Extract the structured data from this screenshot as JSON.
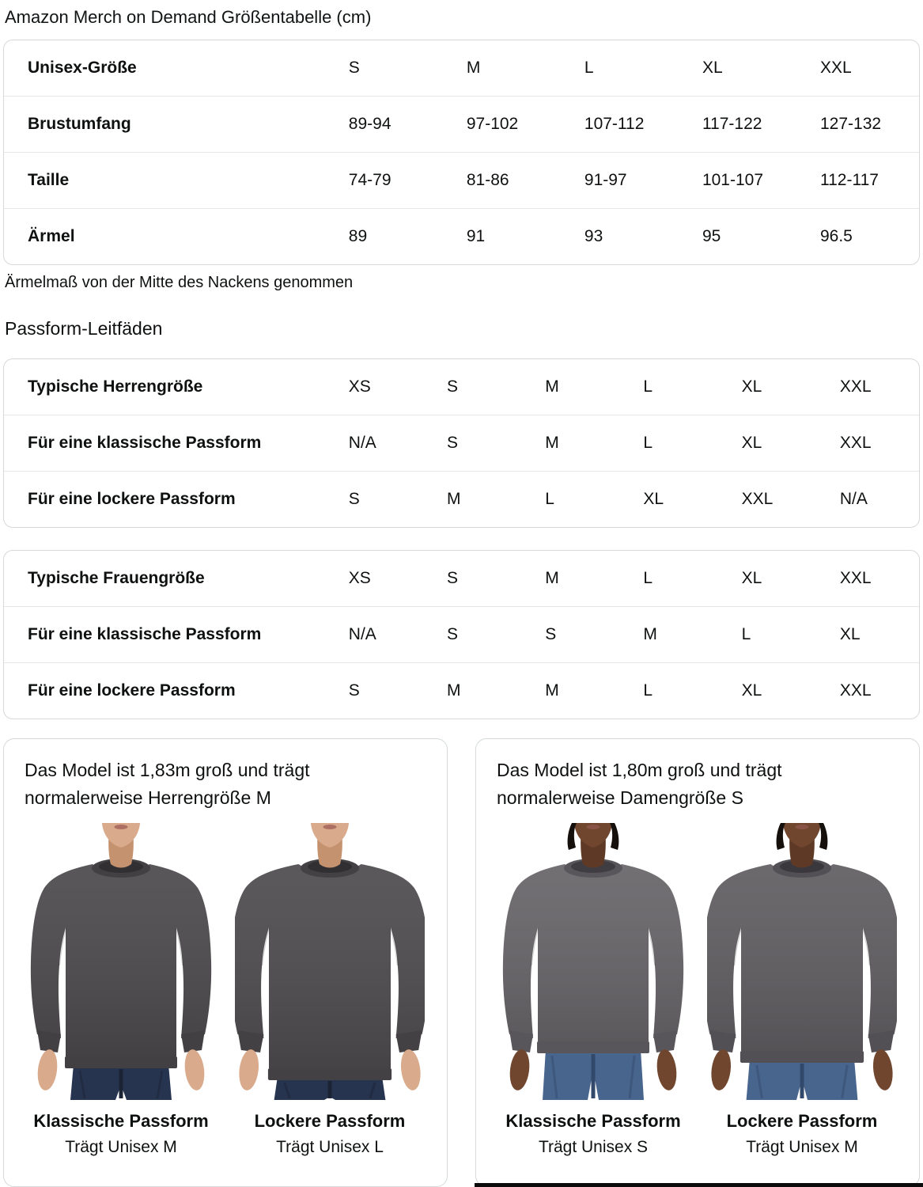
{
  "page": {
    "title": "Amazon Merch on Demand Größentabelle (cm)",
    "sleeve_note": "Ärmelmaß von der Mitte des Nackens genommen",
    "fit_guides_title": "Passform-Leitfäden"
  },
  "size_table": {
    "rows": [
      [
        "Unisex-Größe",
        "S",
        "M",
        "L",
        "XL",
        "XXL"
      ],
      [
        "Brustumfang",
        "89-94",
        "97-102",
        "107-112",
        "117-122",
        "127-132"
      ],
      [
        "Taille",
        "74-79",
        "81-86",
        "91-97",
        "101-107",
        "112-117"
      ],
      [
        "Ärmel",
        "89",
        "91",
        "93",
        "95",
        "96.5"
      ]
    ]
  },
  "fit_tables": [
    {
      "rows": [
        [
          "Typische Herrengröße",
          "XS",
          "S",
          "M",
          "L",
          "XL",
          "XXL"
        ],
        [
          "Für eine klassische Passform",
          "N/A",
          "S",
          "M",
          "L",
          "XL",
          "XXL"
        ],
        [
          "Für eine lockere Passform",
          "S",
          "M",
          "L",
          "XL",
          "XXL",
          "N/A"
        ]
      ]
    },
    {
      "rows": [
        [
          "Typische Frauengröße",
          "XS",
          "S",
          "M",
          "L",
          "XL",
          "XXL"
        ],
        [
          "Für eine klassische Passform",
          "N/A",
          "S",
          "S",
          "M",
          "L",
          "XL"
        ],
        [
          "Für eine lockere Passform",
          "S",
          "M",
          "M",
          "L",
          "XL",
          "XXL"
        ]
      ]
    }
  ],
  "cards": [
    {
      "description": "Das Model ist 1,83m groß und trägt normalerweise Herrengröße M",
      "figures": [
        {
          "caption": "Klassische Passform",
          "sub": "Trägt Unisex M",
          "fit": "classic",
          "colors": {
            "skin": "#d9aa8b",
            "skin_shade": "#c4926f",
            "lips": "#ad6f63",
            "shirt": "#4d4a4d",
            "rib": "#434043",
            "collar_shadow": "#322f32",
            "jeans": "#273450",
            "jeans_seam": "#1b2434",
            "hair": ""
          }
        },
        {
          "caption": "Lockere Passform",
          "sub": "Trägt Unisex L",
          "fit": "loose",
          "colors": {
            "skin": "#d9aa8b",
            "skin_shade": "#c4926f",
            "lips": "#ad6f63",
            "shirt": "#4f4c4f",
            "rib": "#444144",
            "collar_shadow": "#322f32",
            "jeans": "#273450",
            "jeans_seam": "#1b2434",
            "hair": ""
          }
        }
      ]
    },
    {
      "description": "Das Model ist 1,80m groß und trägt normalerweise Damengröße S",
      "figures": [
        {
          "caption": "Klassische Passform",
          "sub": "Trägt Unisex S",
          "fit": "classic",
          "colors": {
            "skin": "#70462e",
            "skin_shade": "#5e3a26",
            "lips": "#8a5348",
            "shirt": "#686569",
            "rib": "#59565b",
            "collar_shadow": "#403d42",
            "jeans": "#48658e",
            "jeans_seam": "#33496b",
            "hair": "#16100d"
          }
        },
        {
          "caption": "Lockere Passform",
          "sub": "Trägt Unisex M",
          "fit": "loose",
          "colors": {
            "skin": "#70462e",
            "skin_shade": "#5e3a26",
            "lips": "#8a5348",
            "shirt": "#615e62",
            "rib": "#535055",
            "collar_shadow": "#3b383d",
            "jeans": "#48658e",
            "jeans_seam": "#33496b",
            "hair": "#16100d"
          }
        }
      ]
    }
  ]
}
